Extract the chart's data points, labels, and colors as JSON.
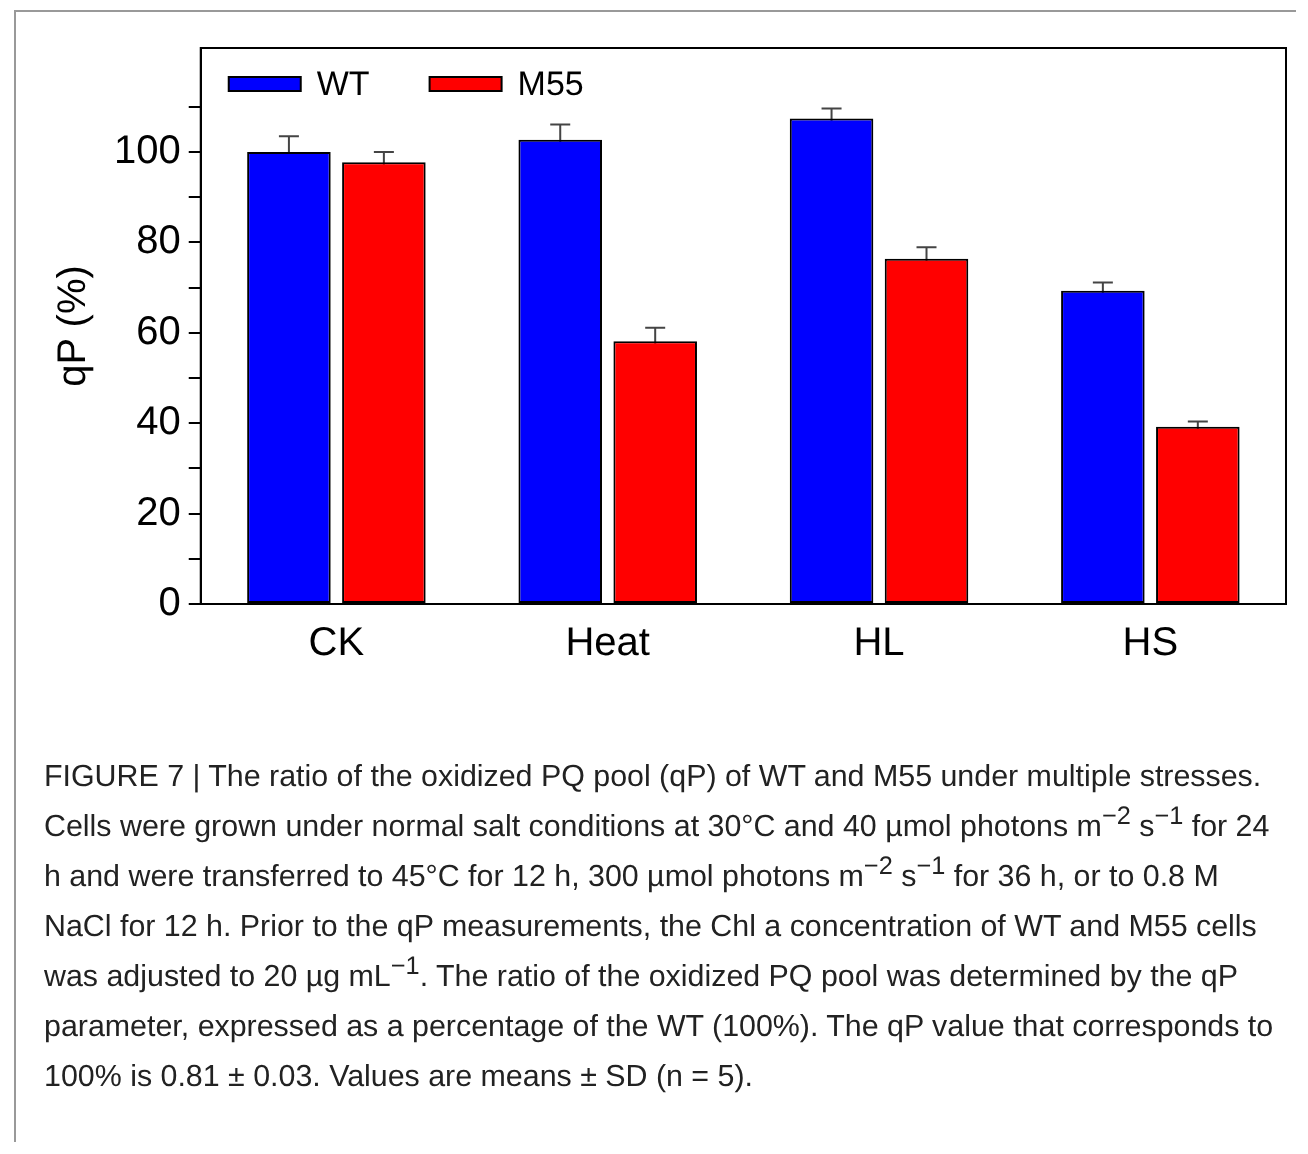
{
  "chart_data": {
    "type": "bar",
    "ylabel": "qP (%)",
    "categories": [
      "CK",
      "Heat",
      "HL",
      "HS"
    ],
    "series": [
      {
        "name": "WT",
        "color": "#0000ff",
        "values": [
          100,
          102.7,
          107.4,
          69.3
        ],
        "errors": [
          3.5,
          3.4,
          2.2,
          1.8
        ]
      },
      {
        "name": "M55",
        "color": "#ff0000",
        "values": [
          97.7,
          58.1,
          76.4,
          39.2
        ],
        "errors": [
          2.3,
          3,
          2.5,
          1.2
        ]
      }
    ],
    "ylim": [
      0,
      123
    ],
    "yticks": [
      0,
      {
        "value": 10,
        "label": null
      },
      20,
      {
        "value": 30,
        "label": null
      },
      40,
      {
        "value": 50,
        "label": null
      },
      60,
      {
        "value": 70,
        "label": null
      },
      80,
      {
        "value": 90,
        "label": null
      },
      100,
      {
        "value": 110,
        "label": null
      }
    ],
    "legend": "top left",
    "grid": false,
    "annotations": [
      "FIGURE 7 | The ratio of the oxidized PQ pool (qP) of WT and M55 under multiple stresses. Cells were grown under normal salt conditions at 30°C and 40 µmol photons m$^{−2}$ s$^{−1}$ for 24 h and were transferred to 45°C for 12 h, 300 µmol photons m$^{−2}$ s$^{−1}$ for 36 h, or to 0.8 M NaCl for 12 h. Prior to the qP measurements, the Chl a concentration of WT and M55 cells was adjusted to 20 µg mL$^{−1}$. The ratio of the oxidized PQ pool was determined by the qP parameter, expressed as a percentage of the WT (100%). The qP value that corresponds to 100% is 0.81 ± 0.03. Values are means ± SD (n = 5)."
    ]
  }
}
